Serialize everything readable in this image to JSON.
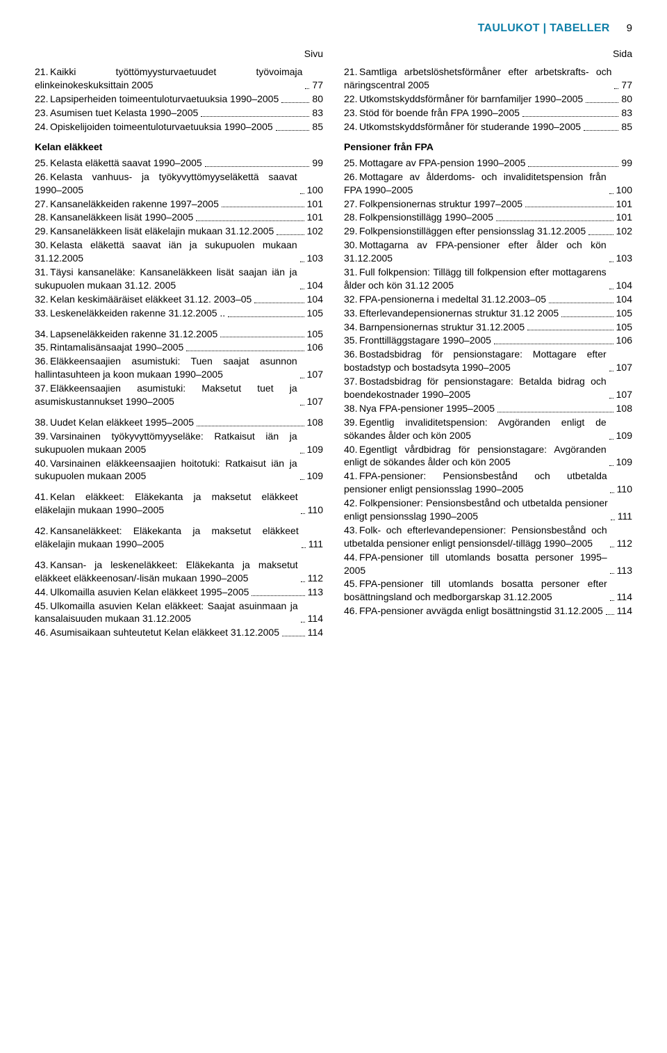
{
  "header": {
    "title_left": "TAULUKOT",
    "title_right": "TABELLER",
    "page_number": "9",
    "divider": "|"
  },
  "colors": {
    "accent": "#0f7fa8",
    "text": "#000000",
    "background": "#ffffff"
  },
  "left": {
    "col_label": "Sivu",
    "groups": [
      {
        "head": null,
        "items": [
          {
            "n": "21.",
            "t": "Kaikki työttömyysturvaetuudet työvoima­ja elinkeinokeskuksittain 2005",
            "p": "77"
          },
          {
            "n": "22.",
            "t": "Lapsiperheiden toimeentuloturvaetuuksia 1990–2005",
            "p": "80"
          },
          {
            "n": "23.",
            "t": "Asumisen tuet Kelasta 1990–2005",
            "p": "83"
          },
          {
            "n": "24.",
            "t": "Opiskelijoiden toimeentuloturvaetuuksia 1990–2005",
            "p": "85"
          }
        ]
      },
      {
        "head": "Kelan eläkkeet",
        "items": [
          {
            "n": "25.",
            "t": "Kelasta eläkettä saavat 1990–2005",
            "p": "99"
          },
          {
            "n": "26.",
            "t": "Kelasta vanhuus- ja työkyvyttömyyseläkettä saavat 1990–2005",
            "p": "100"
          },
          {
            "n": "27.",
            "t": "Kansaneläkkeiden rakenne 1997–2005",
            "p": "101"
          },
          {
            "n": "28.",
            "t": "Kansaneläkkeen lisät 1990–2005",
            "p": "101"
          },
          {
            "n": "29.",
            "t": "Kansaneläkkeen lisät eläkelajin mukaan 31.12.2005",
            "p": "102"
          },
          {
            "n": "30.",
            "t": "Kelasta eläkettä saavat iän ja sukupuolen mukaan 31.12.2005",
            "p": "103"
          },
          {
            "n": "31.",
            "t": "Täysi kansaneläke: Kansaneläkkeen lisät saajan iän ja sukupuolen mukaan 31.12. 2005",
            "p": "104"
          },
          {
            "n": "32.",
            "t": "Kelan keskimääräiset eläkkeet 31.12. 2003–05",
            "p": "104"
          },
          {
            "n": "33.",
            "t": "Leskeneläkkeiden rakenne 31.12.2005 ..",
            "p": "105"
          },
          {
            "n": "34.",
            "t": "Lapseneläkkeiden rakenne 31.12.2005",
            "p": "105",
            "spacer_before": true
          },
          {
            "n": "35.",
            "t": "Rintamalisänsaajat 1990–2005",
            "p": "106"
          },
          {
            "n": "36.",
            "t": "Eläkkeensaajien asumistuki: Tuen saajat asunnon hallintasuhteen ja koon mukaan 1990–2005",
            "p": "107"
          },
          {
            "n": "37.",
            "t": "Eläkkeensaajien asumistuki: Maksetut tuet ja asumiskustannukset 1990–2005",
            "p": "107"
          },
          {
            "n": "38.",
            "t": "Uudet Kelan eläkkeet 1995–2005",
            "p": "108",
            "spacer_before": true
          },
          {
            "n": "39.",
            "t": "Varsinainen työkyvyttömyyseläke: Ratkai­sut iän ja sukupuolen mukaan 2005",
            "p": "109"
          },
          {
            "n": "40.",
            "t": "Varsinainen eläkkeensaajien hoitotuki: Rat­kaisut iän ja sukupuolen mukaan 2005",
            "p": "109"
          },
          {
            "n": "41.",
            "t": "Kelan eläkkeet: Eläkekanta ja maksetut eläkkeet eläkelajin mukaan 1990–2005",
            "p": "110",
            "spacer_before": true
          },
          {
            "n": "42.",
            "t": "Kansaneläkkeet: Eläkekanta ja makse­tut eläkkeet eläkelajin mukaan 1990–2005",
            "p": "111",
            "spacer_before": true
          },
          {
            "n": "43.",
            "t": "Kansan- ja leskeneläkkeet: Eläkekanta ja maksetut eläkkeet eläkkeenosan/-lisän mukaan 1990–2005",
            "p": "112",
            "spacer_before": true
          },
          {
            "n": "44.",
            "t": "Ulkomailla asuvien Kelan eläkkeet 1995–2005",
            "p": "113"
          },
          {
            "n": "45.",
            "t": "Ulkomailla asuvien Kelan eläkkeet: Saajat asuinmaan ja kansalaisuuden mukaan 31.12.2005",
            "p": "114"
          },
          {
            "n": "46.",
            "t": "Asumisaikaan suhteutetut Kelan eläkkeet 31.12.2005",
            "p": "114"
          }
        ]
      }
    ]
  },
  "right": {
    "col_label": "Sida",
    "groups": [
      {
        "head": null,
        "items": [
          {
            "n": "21.",
            "t": "Samtliga arbetslöshetsförmåner efter ar­betskrafts- och näringscentral 2005",
            "p": "77"
          },
          {
            "n": "22.",
            "t": "Utkomstskyddsförmåner för barnfamiljer 1990–2005",
            "p": "80"
          },
          {
            "n": "23.",
            "t": "Stöd för boende från FPA 1990–2005",
            "p": "83"
          },
          {
            "n": "24.",
            "t": "Utkomstskyddsförmåner för studerande 1990–2005",
            "p": "85"
          }
        ]
      },
      {
        "head": "Pensioner från FPA",
        "items": [
          {
            "n": "25.",
            "t": "Mottagare av FPA-pension 1990–2005",
            "p": "99"
          },
          {
            "n": "26.",
            "t": "Mottagare av ålderdoms- och invaliditets­pension från FPA 1990–2005",
            "p": "100"
          },
          {
            "n": "27.",
            "t": "Folkpensionernas struktur 1997–2005",
            "p": "101"
          },
          {
            "n": "28.",
            "t": "Folkpensionstillägg 1990–2005",
            "p": "101"
          },
          {
            "n": "29.",
            "t": "Folkpensionstilläggen efter pensionsslag 31.12.2005",
            "p": "102"
          },
          {
            "n": "30.",
            "t": "Mottagarna av FPA-pensioner efter ålder och kön 31.12.2005",
            "p": "103"
          },
          {
            "n": "31.",
            "t": "Full folkpension: Tillägg till folkpension efter mottagarens ålder och kön 31.12 2005",
            "p": "104"
          },
          {
            "n": "32.",
            "t": "FPA-pensionerna i medeltal 31.12.2003–05",
            "p": "104"
          },
          {
            "n": "33.",
            "t": "Efterlevandepensionernas struktur 31.12 2005",
            "p": "105"
          },
          {
            "n": "34.",
            "t": "Barnpensionernas struktur 31.12.2005",
            "p": "105"
          },
          {
            "n": "35.",
            "t": "Fronttilläggstagare 1990–2005",
            "p": "106"
          },
          {
            "n": "36.",
            "t": "Bostadsbidrag för pensionstagare: Mot­tagare efter bostadstyp och bostadsyta 1990–2005",
            "p": "107"
          },
          {
            "n": "37.",
            "t": "Bostadsbidrag för pensionstagare: Betal­da bidrag och boendekostnader 1990–2005",
            "p": "107"
          },
          {
            "n": "38.",
            "t": "Nya FPA-pensioner 1995–2005",
            "p": "108"
          },
          {
            "n": "39.",
            "t": "Egentlig invaliditetspension: Avgöranden enligt de sökandes ålder och kön 2005",
            "p": "109"
          },
          {
            "n": "40.",
            "t": "Egentligt vårdbidrag för pensionstagare: Avgöranden enligt de sökandes ålder och kön 2005",
            "p": "109"
          },
          {
            "n": "41.",
            "t": "FPA-pensioner: Pensionsbestånd och ut­betalda pensioner enligt pensionsslag 1990–2005",
            "p": "110"
          },
          {
            "n": "42.",
            "t": "Folkpensioner: Pensionsbestånd och ut­betalda pensioner enligt pensionsslag 1990–2005",
            "p": "111"
          },
          {
            "n": "43.",
            "t": "Folk- och efterlevandepensioner: Pen­sionsbestånd och utbetalda pensioner enligt pensionsdel/-tillägg 1990–2005",
            "p": "112"
          },
          {
            "n": "44.",
            "t": "FPA-pensioner till utomlands bosatta per­soner 1995–2005",
            "p": "113"
          },
          {
            "n": "45.",
            "t": "FPA-pensioner till utomlands bosatta per­soner efter bosättningsland och medbor­garskap 31.12.2005",
            "p": "114"
          },
          {
            "n": "46.",
            "t": "FPA-pensioner avvägda enligt bosätt­ningstid 31.12.2005",
            "p": "114"
          }
        ]
      }
    ]
  }
}
